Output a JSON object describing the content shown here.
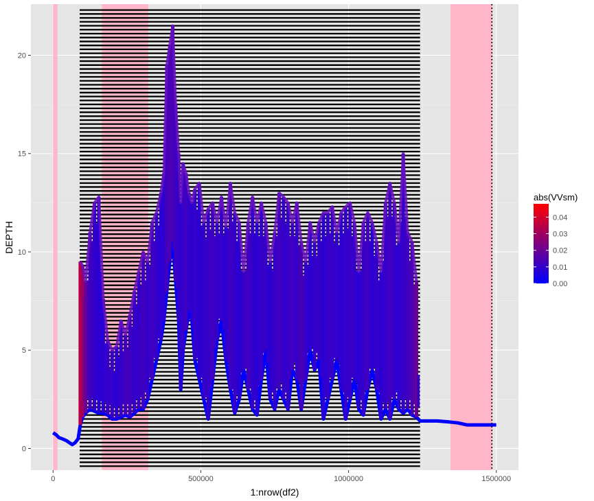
{
  "chart_data": {
    "type": "line",
    "xlabel": "1:nrow(df2)",
    "ylabel": "DEPTH",
    "xlim": [
      -75000,
      1575000
    ],
    "ylim": [
      -1.1,
      22.6
    ],
    "x_ticks": [
      0,
      500000,
      1000000,
      1500000
    ],
    "x_tick_labels": [
      "0",
      "500000",
      "1000000",
      "1500000"
    ],
    "y_ticks": [
      0,
      5,
      10,
      15,
      20
    ],
    "y_tick_labels": [
      "0",
      "5",
      "10",
      "15",
      "20"
    ],
    "grid": true,
    "panel_background": "#e5e5e5",
    "shaded_regions": [
      {
        "x0": 0,
        "x1": 15000,
        "color": "#ffb6c8"
      },
      {
        "x0": 165000,
        "x1": 322000,
        "color": "#ffb6c8"
      },
      {
        "x0": 1345000,
        "x1": 1487000,
        "color": "#ffb6c8"
      }
    ],
    "horizontal_lines": {
      "x0": 90000,
      "x1": 1242000,
      "y_start": -0.9,
      "y_end": 22.45,
      "spacing": 0.2,
      "color": "#000000"
    },
    "vertical_reference_line": {
      "x": 1485000,
      "style": "dotted",
      "color": "#000000"
    },
    "series": [
      {
        "x": [
          0,
          10000,
          20000,
          30000,
          45000,
          55000,
          65000,
          75000,
          85000,
          92000,
          100000,
          110000,
          125000,
          140000,
          155000,
          170000,
          185000,
          200000,
          215000,
          230000,
          245000,
          260000,
          275000,
          290000,
          305000,
          320000,
          335000,
          350000,
          365000,
          375000,
          385000,
          395000,
          405000,
          415000,
          425000,
          432000,
          440000,
          450000,
          460000,
          470000,
          480000,
          495000,
          510000,
          525000,
          540000,
          555000,
          570000,
          585000,
          600000,
          615000,
          630000,
          645000,
          660000,
          675000,
          690000,
          705000,
          720000,
          735000,
          750000,
          765000,
          780000,
          795000,
          810000,
          825000,
          840000,
          855000,
          870000,
          885000,
          900000,
          915000,
          930000,
          945000,
          960000,
          975000,
          990000,
          1005000,
          1020000,
          1035000,
          1050000,
          1065000,
          1080000,
          1095000,
          1110000,
          1125000,
          1140000,
          1155000,
          1170000,
          1185000,
          1200000,
          1215000,
          1230000,
          1242000,
          1260000,
          1300000,
          1340000,
          1370000,
          1400000,
          1430000,
          1460000,
          1480000,
          1500000
        ],
        "low": [
          0.8,
          0.7,
          0.55,
          0.5,
          0.4,
          0.3,
          0.2,
          0.3,
          0.5,
          1.2,
          1.6,
          1.8,
          2.0,
          1.9,
          1.8,
          1.8,
          1.7,
          1.5,
          1.5,
          1.6,
          1.7,
          1.6,
          1.8,
          2.0,
          2.0,
          2.5,
          3.5,
          4.5,
          5.5,
          6.5,
          8.0,
          9.5,
          10.5,
          8.5,
          6.5,
          3.0,
          5.0,
          6.0,
          7.0,
          6.5,
          4.5,
          3.5,
          2.5,
          1.5,
          3.5,
          5.5,
          6.5,
          4.5,
          3.0,
          1.8,
          2.5,
          4.0,
          3.0,
          2.0,
          1.7,
          3.5,
          5.0,
          2.5,
          2.0,
          3.0,
          2.5,
          2.0,
          4.0,
          3.5,
          2.0,
          3.5,
          5.0,
          4.0,
          4.5,
          1.5,
          2.5,
          3.5,
          4.5,
          3.0,
          1.5,
          2.5,
          3.5,
          2.0,
          1.7,
          3.0,
          4.0,
          3.0,
          1.5,
          2.0,
          1.5,
          2.5,
          2.0,
          1.8,
          2.0,
          1.7,
          1.6,
          1.4,
          1.4,
          1.4,
          1.35,
          1.3,
          1.2,
          1.2,
          1.2,
          1.2,
          1.2
        ],
        "high": [
          0.8,
          0.7,
          0.55,
          0.5,
          0.4,
          0.3,
          0.2,
          0.3,
          0.5,
          9.5,
          9.3,
          8.5,
          11.0,
          12.5,
          12.8,
          7.6,
          5.5,
          5.0,
          5.2,
          6.5,
          5.8,
          6.8,
          8.0,
          9.0,
          10.0,
          9.5,
          11.5,
          12.0,
          13.0,
          14.0,
          19.5,
          20.5,
          21.5,
          17.5,
          15.0,
          12.5,
          14.5,
          14.0,
          13.0,
          12.5,
          13.2,
          13.5,
          11.5,
          12.2,
          12.5,
          11.5,
          12.8,
          11.3,
          13.5,
          12.0,
          11.5,
          9.0,
          11.5,
          12.8,
          11.5,
          12.5,
          11.5,
          9.5,
          11.0,
          13.0,
          12.8,
          12.5,
          11.5,
          12.5,
          10.5,
          9.5,
          11.5,
          10.5,
          11.5,
          12.0,
          12.0,
          12.3,
          11.0,
          12.0,
          12.3,
          12.5,
          11.5,
          9.0,
          11.5,
          12.0,
          11.5,
          10.5,
          9.0,
          12.5,
          13.5,
          12.5,
          10.5,
          15.0,
          11.0,
          10.5,
          8.5,
          1.4,
          1.4,
          1.4,
          1.35,
          1.3,
          1.2,
          1.2,
          1.2,
          1.2,
          1.2
        ],
        "color_value": [
          0.0,
          0.0,
          0.0,
          0.0,
          0.0,
          0.0,
          0.0,
          0.0,
          0.0,
          0.035,
          0.03,
          0.02,
          0.012,
          0.01,
          0.008,
          0.008,
          0.01,
          0.01,
          0.008,
          0.01,
          0.012,
          0.012,
          0.01,
          0.01,
          0.012,
          0.01,
          0.012,
          0.01,
          0.008,
          0.008,
          0.012,
          0.014,
          0.014,
          0.012,
          0.01,
          0.008,
          0.01,
          0.012,
          0.01,
          0.008,
          0.01,
          0.008,
          0.01,
          0.01,
          0.012,
          0.01,
          0.01,
          0.008,
          0.012,
          0.01,
          0.008,
          0.01,
          0.012,
          0.01,
          0.008,
          0.01,
          0.01,
          0.008,
          0.01,
          0.012,
          0.01,
          0.01,
          0.012,
          0.01,
          0.014,
          0.01,
          0.008,
          0.01,
          0.01,
          0.008,
          0.01,
          0.01,
          0.01,
          0.008,
          0.01,
          0.01,
          0.01,
          0.008,
          0.01,
          0.012,
          0.008,
          0.01,
          0.008,
          0.01,
          0.012,
          0.01,
          0.008,
          0.01,
          0.012,
          0.014,
          0.02,
          0.0,
          0.0,
          0.0,
          0.0,
          0.0,
          0.0,
          0.0,
          0.0,
          0.0,
          0.0
        ]
      }
    ],
    "legend": {
      "title": "abs(VVsm)",
      "placement": "right",
      "min": 0.0,
      "max": 0.048,
      "ticks": [
        0.0,
        0.01,
        0.02,
        0.03,
        0.04
      ],
      "tick_labels": [
        "0.00",
        "0.01",
        "0.02",
        "0.03",
        "0.04"
      ],
      "low_color": "#0000ff",
      "high_color": "#ff0000"
    }
  }
}
